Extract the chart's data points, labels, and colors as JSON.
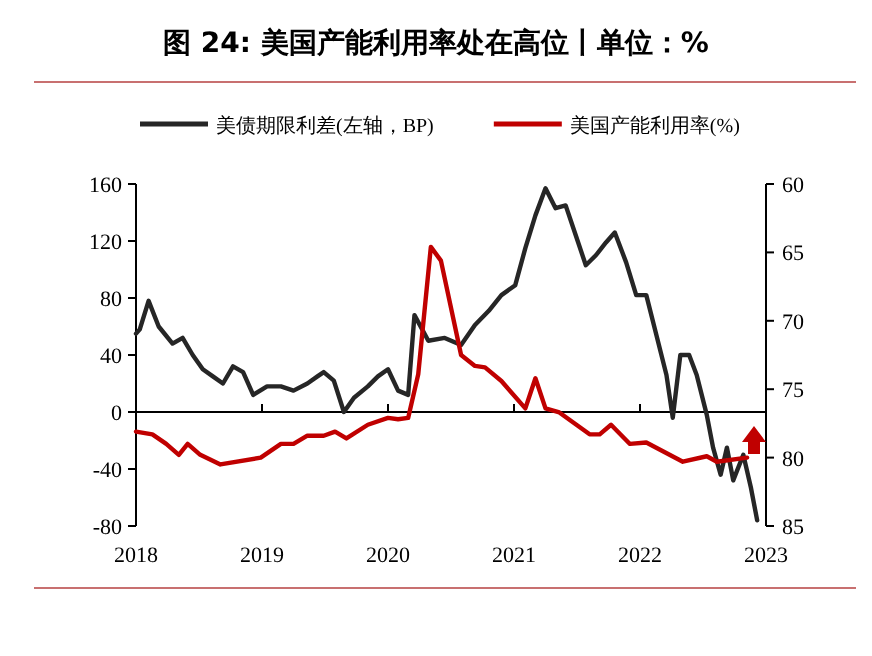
{
  "chart_data": {
    "type": "line",
    "title": "图 24: 美国产能利用率处在高位丨单位：%",
    "xlim": [
      2018,
      2023
    ],
    "xticks": [
      2018,
      2019,
      2020,
      2021,
      2022,
      2023
    ],
    "ylim": [
      -80,
      160
    ],
    "yticks": [
      -80,
      -40,
      0,
      40,
      80,
      120,
      160
    ],
    "y2lim": [
      85,
      60
    ],
    "y2ticks": [
      60,
      65,
      70,
      75,
      80,
      85
    ],
    "legend": "top",
    "marker": "none",
    "line_style": "solid",
    "series": [
      {
        "name": "美债期限利差(左轴，BP)",
        "color": "#262626",
        "x": [
          2018.0,
          2018.03,
          2018.1,
          2018.18,
          2018.29,
          2018.37,
          2018.45,
          2018.53,
          2018.61,
          2018.69,
          2018.77,
          2018.85,
          2018.93,
          2019.04,
          2019.15,
          2019.25,
          2019.36,
          2019.44,
          2019.49,
          2019.57,
          2019.65,
          2019.73,
          2019.84,
          2019.92,
          2020.0,
          2020.08,
          2020.16,
          2020.21,
          2020.32,
          2020.45,
          2020.58,
          2020.69,
          2020.8,
          2020.9,
          2021.01,
          2021.09,
          2021.17,
          2021.25,
          2021.33,
          2021.41,
          2021.49,
          2021.57,
          2021.65,
          2021.73,
          2021.8,
          2021.89,
          2021.97,
          2022.05,
          2022.13,
          2022.21,
          2022.26,
          2022.32,
          2022.39,
          2022.45,
          2022.53,
          2022.58,
          2022.64,
          2022.69,
          2022.74,
          2022.82,
          2022.88,
          2022.93
        ],
        "values": [
          55,
          58,
          78,
          60,
          48,
          52,
          40,
          30,
          25,
          20,
          32,
          28,
          12,
          18,
          18,
          15,
          20,
          25,
          28,
          22,
          0,
          10,
          18,
          25,
          30,
          15,
          12,
          68,
          50,
          52,
          47,
          61,
          71,
          82,
          89,
          115,
          138,
          157,
          143,
          145,
          124,
          103,
          110,
          119,
          126,
          105,
          82,
          82,
          54,
          26,
          -4,
          40,
          40,
          26,
          -2,
          -25,
          -44,
          -25,
          -48,
          -30,
          -53,
          -76
        ]
      },
      {
        "name": "美国产能利用率(%)",
        "color": "#c00000",
        "axis": "y2",
        "x": [
          2018.0,
          2018.13,
          2018.24,
          2018.34,
          2018.41,
          2018.51,
          2018.67,
          2018.99,
          2019.15,
          2019.25,
          2019.36,
          2019.49,
          2019.58,
          2019.67,
          2019.84,
          2020.0,
          2020.08,
          2020.16,
          2020.24,
          2020.34,
          2020.42,
          2020.58,
          2020.69,
          2020.77,
          2020.9,
          2021.09,
          2021.17,
          2021.25,
          2021.36,
          2021.6,
          2021.68,
          2021.77,
          2021.92,
          2022.05,
          2022.34,
          2022.53,
          2022.61,
          2022.85
        ],
        "values": [
          78.1,
          78.3,
          79.0,
          79.8,
          79.0,
          79.8,
          80.5,
          80.0,
          79.0,
          79.0,
          78.4,
          78.4,
          78.1,
          78.6,
          77.6,
          77.1,
          77.2,
          77.1,
          73.9,
          64.6,
          65.6,
          72.5,
          73.3,
          73.4,
          74.4,
          76.4,
          74.2,
          76.4,
          76.7,
          78.3,
          78.3,
          77.6,
          79.0,
          78.9,
          80.3,
          79.9,
          80.3,
          80.0
        ]
      }
    ]
  }
}
